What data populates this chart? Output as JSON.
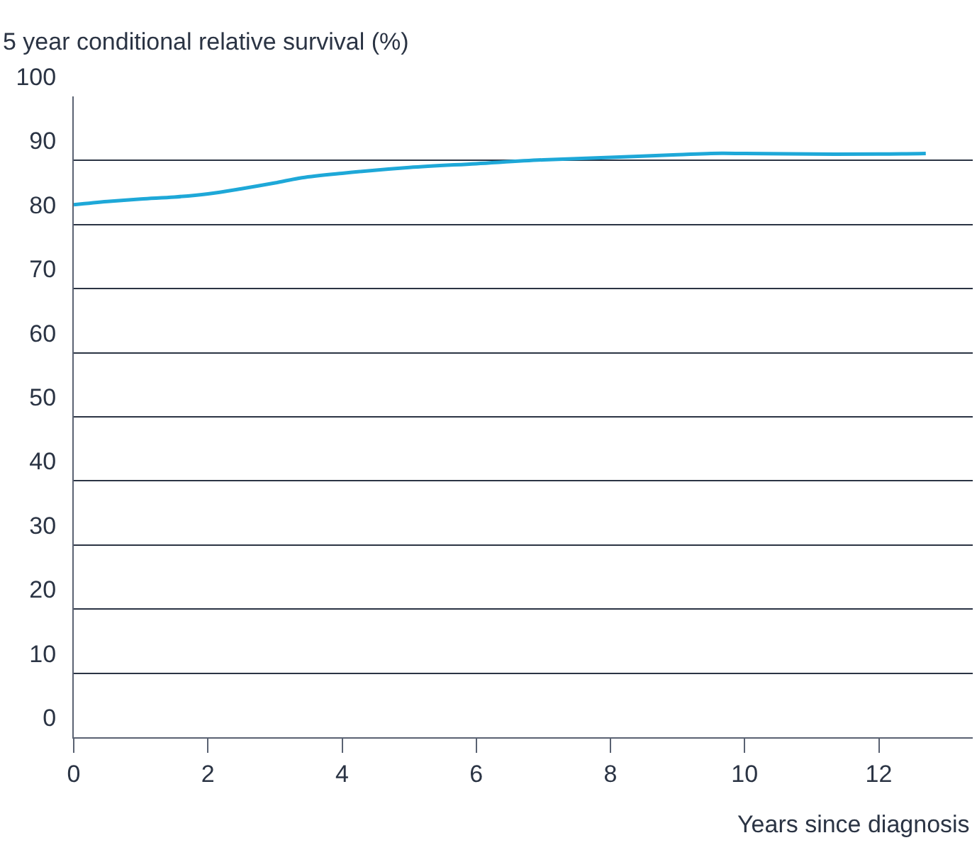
{
  "chart_data": {
    "type": "line",
    "ylabel": "5 year conditional relative survival (%)",
    "xlabel": "Years since diagnosis",
    "x": [
      0,
      0.5,
      1,
      1.5,
      2,
      2.5,
      3,
      3.4,
      4,
      5,
      6,
      7,
      8,
      9,
      9.5,
      10,
      11,
      12,
      12.7
    ],
    "series": [
      {
        "color": "#1ea8d8",
        "values": [
          83.1,
          83.6,
          84.0,
          84.3,
          84.8,
          85.6,
          86.5,
          87.3,
          88.0,
          88.9,
          89.5,
          90.1,
          90.5,
          90.9,
          91.1,
          91.1,
          91.0,
          91.0,
          91.1
        ]
      }
    ],
    "xlim": [
      0,
      13.4
    ],
    "xticks": [
      0,
      2,
      4,
      6,
      8,
      10,
      12
    ],
    "ylim": [
      0,
      100
    ],
    "yticks": [
      0,
      10,
      20,
      30,
      40,
      50,
      60,
      70,
      80,
      90,
      100
    ],
    "grid": "y",
    "marker": "none",
    "line_style": "solid"
  }
}
